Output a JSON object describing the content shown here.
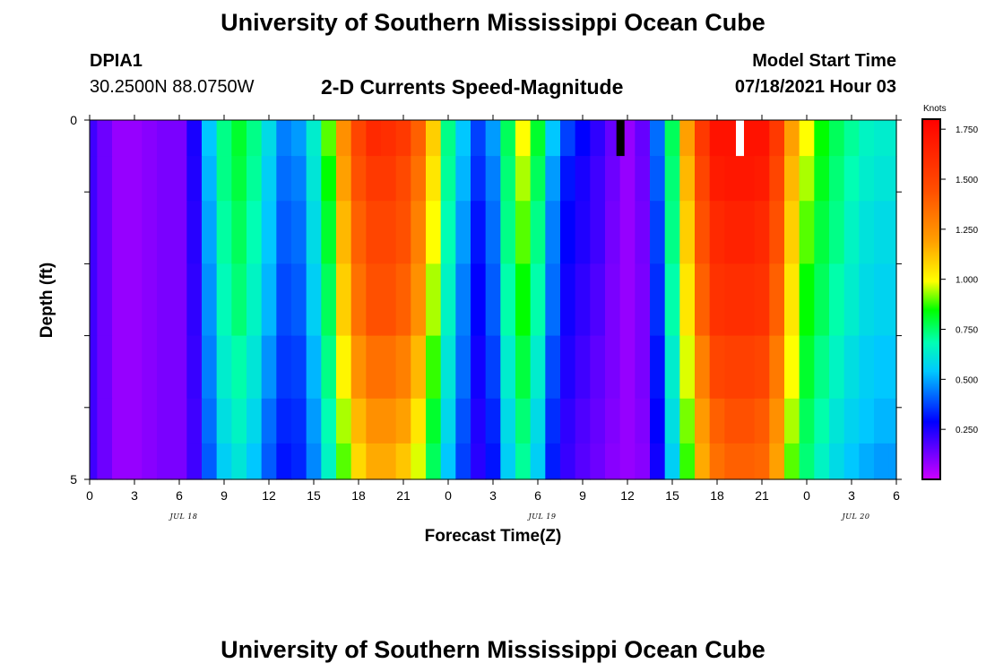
{
  "header": {
    "title_top": "University of Southern Mississippi Ocean Cube",
    "title_bottom": "University of Southern Mississippi Ocean Cube",
    "station_id": "DPIA1",
    "station_coords": "30.2500N  88.0750W",
    "plot_title": "2-D Currents Speed-Magnitude",
    "model_start_label": "Model Start Time",
    "model_start_value": "07/18/2021 Hour 03"
  },
  "chart_data": {
    "type": "heatmap",
    "title": "2-D Currents Speed-Magnitude",
    "xlabel": "Forecast Time(Z)",
    "ylabel": "Depth (ft)",
    "x_tick_labels": [
      "0",
      "3",
      "6",
      "9",
      "12",
      "15",
      "18",
      "21",
      "0",
      "3",
      "6",
      "9",
      "12",
      "15",
      "18",
      "21",
      "0",
      "3",
      "6"
    ],
    "date_labels": [
      "JUL 18",
      "JUL 19",
      "JUL 20"
    ],
    "y_tick_labels": [
      "0",
      "5"
    ],
    "ylim": [
      0,
      5
    ],
    "x_range_hours": [
      0,
      54
    ],
    "colorbar": {
      "label": "Knots",
      "ticks": [
        "1.750",
        "1.500",
        "1.250",
        "1.000",
        "0.750",
        "0.500",
        "0.250"
      ],
      "tick_values": [
        1.75,
        1.5,
        1.25,
        1.0,
        0.75,
        0.5,
        0.25
      ],
      "range": [
        0,
        1.8
      ]
    },
    "missing_markers": [
      {
        "hour": 35.5,
        "color": "#000000"
      },
      {
        "hour": 43.5,
        "color": "#ffffff"
      }
    ],
    "depth_rows_ft": [
      0.25,
      0.75,
      1.5,
      2.5,
      3.5,
      4.25,
      4.75
    ],
    "speed_profiles_knots": [
      [
        0.2,
        0.14,
        0.08,
        0.08,
        0.1,
        0.12,
        0.12,
        0.25,
        0.5,
        0.7,
        0.8,
        0.7,
        0.55,
        0.42,
        0.45,
        0.6,
        0.9,
        1.25,
        1.5,
        1.62,
        1.6,
        1.55,
        1.4,
        1.1,
        0.7,
        0.5,
        0.35,
        0.45,
        0.75,
        1.0,
        0.8,
        0.5,
        0.35,
        0.28,
        0.22,
        0.15,
        0.08,
        0.15,
        0.4,
        0.75,
        1.2,
        1.55,
        1.72,
        1.72,
        1.72,
        1.72,
        1.55,
        1.2,
        1.0,
        0.85,
        0.75,
        0.68,
        0.62,
        0.6,
        0.6
      ],
      [
        0.2,
        0.14,
        0.08,
        0.08,
        0.1,
        0.12,
        0.12,
        0.24,
        0.48,
        0.7,
        0.78,
        0.68,
        0.52,
        0.4,
        0.42,
        0.58,
        0.85,
        1.2,
        1.45,
        1.55,
        1.55,
        1.48,
        1.35,
        1.05,
        0.68,
        0.48,
        0.33,
        0.42,
        0.72,
        0.95,
        0.75,
        0.45,
        0.3,
        0.25,
        0.2,
        0.14,
        0.08,
        0.14,
        0.38,
        0.72,
        1.15,
        1.5,
        1.68,
        1.7,
        1.7,
        1.68,
        1.5,
        1.15,
        0.95,
        0.82,
        0.72,
        0.65,
        0.6,
        0.58,
        0.58
      ],
      [
        0.2,
        0.14,
        0.08,
        0.08,
        0.1,
        0.12,
        0.12,
        0.23,
        0.46,
        0.67,
        0.75,
        0.65,
        0.5,
        0.38,
        0.4,
        0.55,
        0.8,
        1.15,
        1.4,
        1.5,
        1.5,
        1.45,
        1.3,
        1.0,
        0.65,
        0.45,
        0.3,
        0.4,
        0.7,
        0.9,
        0.7,
        0.42,
        0.28,
        0.24,
        0.2,
        0.13,
        0.08,
        0.13,
        0.35,
        0.7,
        1.1,
        1.45,
        1.62,
        1.65,
        1.65,
        1.62,
        1.45,
        1.1,
        0.9,
        0.78,
        0.7,
        0.62,
        0.57,
        0.55,
        0.55
      ],
      [
        0.2,
        0.14,
        0.08,
        0.08,
        0.1,
        0.12,
        0.12,
        0.22,
        0.44,
        0.64,
        0.72,
        0.62,
        0.48,
        0.36,
        0.38,
        0.52,
        0.75,
        1.1,
        1.35,
        1.45,
        1.45,
        1.4,
        1.25,
        0.95,
        0.62,
        0.42,
        0.28,
        0.38,
        0.66,
        0.85,
        0.66,
        0.4,
        0.26,
        0.22,
        0.18,
        0.12,
        0.08,
        0.12,
        0.33,
        0.66,
        1.05,
        1.4,
        1.58,
        1.6,
        1.6,
        1.58,
        1.4,
        1.05,
        0.85,
        0.75,
        0.66,
        0.6,
        0.55,
        0.53,
        0.53
      ],
      [
        0.2,
        0.14,
        0.08,
        0.08,
        0.1,
        0.12,
        0.12,
        0.21,
        0.42,
        0.6,
        0.66,
        0.58,
        0.44,
        0.34,
        0.35,
        0.48,
        0.7,
        1.02,
        1.25,
        1.35,
        1.35,
        1.3,
        1.15,
        0.88,
        0.58,
        0.4,
        0.26,
        0.35,
        0.6,
        0.78,
        0.6,
        0.36,
        0.24,
        0.2,
        0.16,
        0.12,
        0.08,
        0.12,
        0.3,
        0.6,
        0.98,
        1.3,
        1.5,
        1.52,
        1.52,
        1.5,
        1.32,
        1.0,
        0.8,
        0.7,
        0.62,
        0.56,
        0.52,
        0.5,
        0.5
      ],
      [
        0.2,
        0.14,
        0.08,
        0.08,
        0.1,
        0.12,
        0.12,
        0.2,
        0.4,
        0.56,
        0.62,
        0.54,
        0.4,
        0.32,
        0.33,
        0.45,
        0.65,
        0.95,
        1.15,
        1.25,
        1.25,
        1.2,
        1.05,
        0.8,
        0.54,
        0.37,
        0.24,
        0.32,
        0.55,
        0.72,
        0.55,
        0.33,
        0.22,
        0.18,
        0.15,
        0.11,
        0.08,
        0.11,
        0.28,
        0.56,
        0.92,
        1.22,
        1.4,
        1.45,
        1.45,
        1.42,
        1.25,
        0.95,
        0.75,
        0.66,
        0.58,
        0.53,
        0.5,
        0.48,
        0.48
      ],
      [
        0.2,
        0.14,
        0.08,
        0.08,
        0.1,
        0.12,
        0.12,
        0.2,
        0.38,
        0.52,
        0.58,
        0.5,
        0.38,
        0.3,
        0.32,
        0.43,
        0.62,
        0.9,
        1.08,
        1.18,
        1.18,
        1.12,
        0.98,
        0.75,
        0.5,
        0.35,
        0.23,
        0.3,
        0.52,
        0.68,
        0.52,
        0.31,
        0.21,
        0.17,
        0.14,
        0.1,
        0.08,
        0.1,
        0.26,
        0.52,
        0.88,
        1.18,
        1.35,
        1.4,
        1.4,
        1.38,
        1.2,
        0.9,
        0.72,
        0.62,
        0.55,
        0.5,
        0.47,
        0.45,
        0.45
      ]
    ]
  }
}
